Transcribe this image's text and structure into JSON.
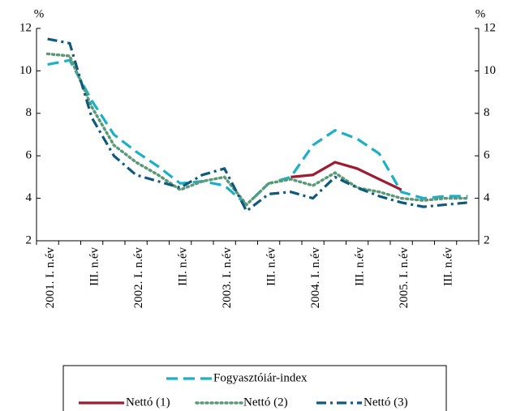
{
  "chart_data": {
    "type": "line",
    "y_label": "%",
    "y2_label": "%",
    "categories": [
      "2001. I. n.év",
      null,
      "III. n.év",
      null,
      "2002. I. n.év",
      null,
      "III. n.év",
      null,
      "2003. I. n.év",
      null,
      "III. n.év",
      null,
      "2004. I. n.év",
      null,
      "III. n.év",
      null,
      "2005. I. n.év",
      null,
      "III. n.év",
      null
    ],
    "series": [
      {
        "name": "Fogyasztóiár-index",
        "color": "#1ab0c8",
        "dash": "dashed",
        "values": [
          10.3,
          10.5,
          8.6,
          7.0,
          6.2,
          5.5,
          4.7,
          4.8,
          4.6,
          3.7,
          4.7,
          5.0,
          6.5,
          7.2,
          6.8,
          6.1,
          4.3,
          4.0,
          4.1,
          4.1
        ]
      },
      {
        "name": "Nettó (1)",
        "color": "#9e1b32",
        "dash": "solid",
        "values": [
          null,
          null,
          null,
          null,
          null,
          null,
          null,
          null,
          null,
          null,
          null,
          5.0,
          5.1,
          5.7,
          5.4,
          4.9,
          4.4,
          null,
          null,
          null
        ]
      },
      {
        "name": "Nettó (2)",
        "color": "#5a9a78",
        "dash": "dotted",
        "values": [
          10.8,
          10.7,
          8.3,
          6.5,
          5.7,
          5.1,
          4.4,
          4.8,
          5.0,
          3.7,
          4.7,
          4.9,
          4.6,
          5.2,
          4.5,
          4.3,
          4.0,
          3.9,
          4.0,
          4.0
        ]
      },
      {
        "name": "Nettó (3)",
        "color": "#0e5a7e",
        "dash": "dashdot",
        "values": [
          11.5,
          11.3,
          7.8,
          6.0,
          5.1,
          4.8,
          4.5,
          5.1,
          5.4,
          3.4,
          4.2,
          4.3,
          4.0,
          5.0,
          4.5,
          4.1,
          3.8,
          3.6,
          3.7,
          3.8
        ]
      }
    ],
    "ylim": [
      2,
      12
    ],
    "yticks": [
      2,
      4,
      6,
      8,
      10,
      12
    ],
    "y2lim": [
      2,
      12
    ],
    "y2ticks": [
      2,
      4,
      6,
      8,
      10,
      12
    ]
  }
}
